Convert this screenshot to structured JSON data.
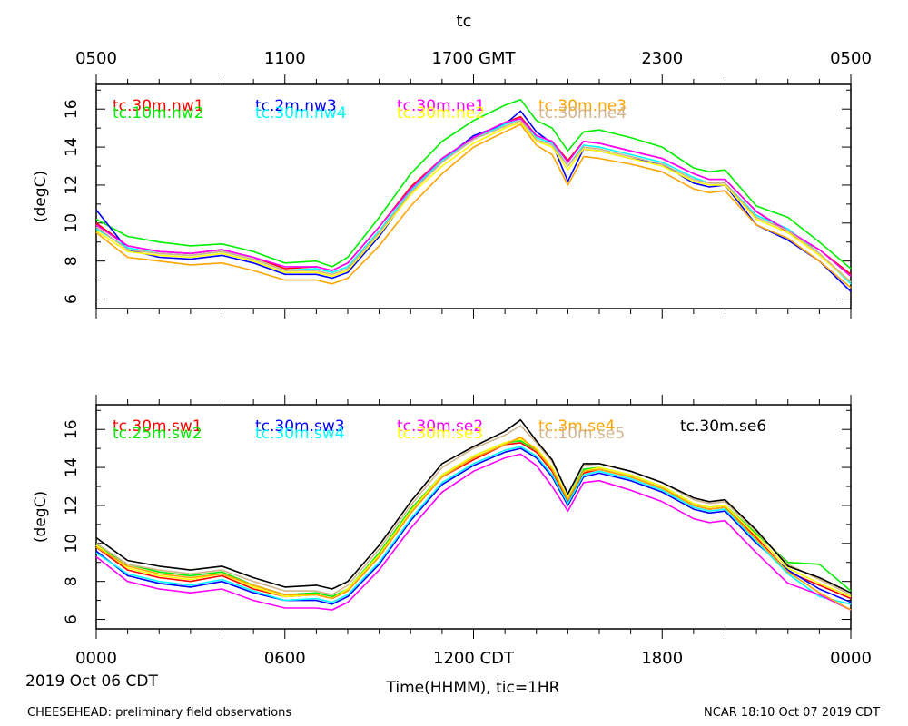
{
  "top_title": "tc",
  "top_ticks": [
    "0500",
    "1100",
    "1700 GMT",
    "2300",
    "0500"
  ],
  "bottom_ticks": [
    "0000",
    "0600",
    "1200 CDT",
    "1800",
    "0000"
  ],
  "date_label": "2019 Oct 06 CDT",
  "xlabel": "Time(HHMM), tic=1HR",
  "footer_left": "CHEESEHEAD: preliminary field observations",
  "footer_right": "NCAR 18:10 Oct 07 2019 CDT",
  "chart_data": [
    {
      "type": "line",
      "title": "tc (upper panel, north towers)",
      "ylabel": "(degC)",
      "ylim": [
        5.5,
        17.3
      ],
      "yticks": [
        6,
        8,
        10,
        12,
        14,
        16
      ],
      "xlim": [
        0,
        24
      ],
      "x": [
        0,
        1,
        2,
        3,
        4,
        5,
        6,
        7,
        7.5,
        8,
        9,
        10,
        11,
        12,
        13,
        13.5,
        14,
        14.5,
        15,
        15.5,
        16,
        17,
        18,
        19,
        19.5,
        20,
        21,
        22,
        23,
        24
      ],
      "series": [
        {
          "name": "tc.30m.nw1",
          "color": "#ff0000",
          "values": [
            10.0,
            8.8,
            8.5,
            8.4,
            8.6,
            8.2,
            7.6,
            7.7,
            7.5,
            7.9,
            9.8,
            11.9,
            13.4,
            14.5,
            15.3,
            15.6,
            14.6,
            14.3,
            13.3,
            14.3,
            14.2,
            13.8,
            13.4,
            12.6,
            12.3,
            12.3,
            10.6,
            9.5,
            8.6,
            7.3
          ]
        },
        {
          "name": "tc.10m.nw2",
          "color": "#00ee00",
          "values": [
            10.2,
            9.3,
            9.0,
            8.8,
            8.9,
            8.5,
            7.9,
            8.0,
            7.7,
            8.2,
            10.3,
            12.6,
            14.3,
            15.4,
            16.2,
            16.5,
            15.4,
            15.0,
            13.8,
            14.8,
            14.9,
            14.5,
            14.0,
            12.9,
            12.7,
            12.8,
            10.9,
            10.3,
            9.0,
            7.6
          ]
        },
        {
          "name": "tc.2m.nw3",
          "color": "#0000ff",
          "values": [
            10.7,
            8.6,
            8.2,
            8.1,
            8.3,
            7.9,
            7.3,
            7.3,
            7.1,
            7.4,
            9.3,
            11.6,
            13.3,
            14.6,
            15.2,
            15.9,
            14.8,
            14.2,
            12.2,
            13.9,
            13.8,
            13.4,
            13.1,
            12.1,
            11.9,
            12.0,
            9.9,
            9.1,
            8.0,
            6.4
          ]
        },
        {
          "name": "tc.30m.nw4",
          "color": "#00ffff",
          "values": [
            9.7,
            8.7,
            8.4,
            8.3,
            8.5,
            8.1,
            7.5,
            7.6,
            7.4,
            7.7,
            9.6,
            11.7,
            13.3,
            14.4,
            15.2,
            15.5,
            14.5,
            14.2,
            13.0,
            14.1,
            14.0,
            13.6,
            13.2,
            12.4,
            12.1,
            12.1,
            10.4,
            9.7,
            8.4,
            6.8
          ]
        },
        {
          "name": "tc.30m.ne1",
          "color": "#ff00ff",
          "values": [
            9.9,
            8.8,
            8.5,
            8.4,
            8.6,
            8.2,
            7.7,
            7.7,
            7.5,
            7.9,
            9.8,
            11.8,
            13.4,
            14.5,
            15.3,
            15.5,
            14.6,
            14.3,
            13.2,
            14.3,
            14.2,
            13.8,
            13.4,
            12.6,
            12.3,
            12.3,
            10.6,
            9.6,
            8.6,
            7.2
          ]
        },
        {
          "name": "tc.30m.ne2",
          "color": "#ffff00",
          "values": [
            9.6,
            8.5,
            8.3,
            8.2,
            8.4,
            8.0,
            7.4,
            7.4,
            7.2,
            7.5,
            9.4,
            11.5,
            13.0,
            14.2,
            15.0,
            15.3,
            14.3,
            14.0,
            12.8,
            13.9,
            13.8,
            13.4,
            13.0,
            12.2,
            12.0,
            12.0,
            10.2,
            9.5,
            8.3,
            6.9
          ]
        },
        {
          "name": "tc.30m.ne3",
          "color": "#ffa500",
          "values": [
            9.5,
            8.2,
            8.0,
            7.8,
            7.9,
            7.5,
            7.0,
            7.0,
            6.8,
            7.1,
            8.8,
            10.9,
            12.6,
            14.0,
            14.8,
            15.2,
            14.1,
            13.6,
            12.0,
            13.5,
            13.4,
            13.1,
            12.7,
            11.8,
            11.6,
            11.7,
            9.9,
            9.2,
            8.0,
            6.6
          ]
        },
        {
          "name": "tc.30m.ne4",
          "color": "#d2b48c",
          "values": [
            9.8,
            8.6,
            8.4,
            8.3,
            8.5,
            8.1,
            7.5,
            7.5,
            7.3,
            7.6,
            9.5,
            11.6,
            13.2,
            14.4,
            15.1,
            15.4,
            14.4,
            14.1,
            13.0,
            14.0,
            13.9,
            13.5,
            13.1,
            12.3,
            12.1,
            12.1,
            10.3,
            9.6,
            8.4,
            6.9
          ]
        }
      ]
    },
    {
      "type": "line",
      "title": "tc (lower panel, south towers)",
      "ylabel": "(degC)",
      "ylim": [
        5.5,
        17.3
      ],
      "yticks": [
        6,
        8,
        10,
        12,
        14,
        16
      ],
      "xlim": [
        0,
        24
      ],
      "x": [
        0,
        1,
        2,
        3,
        4,
        5,
        6,
        7,
        7.5,
        8,
        9,
        10,
        11,
        12,
        13,
        13.5,
        14,
        14.5,
        15,
        15.5,
        16,
        17,
        18,
        19,
        19.5,
        20,
        21,
        22,
        23,
        24
      ],
      "series": [
        {
          "name": "tc.30m.sw1",
          "color": "#ff0000",
          "values": [
            9.8,
            8.6,
            8.2,
            8.0,
            8.3,
            7.6,
            7.2,
            7.3,
            7.1,
            7.5,
            9.3,
            11.6,
            13.5,
            14.4,
            15.2,
            15.3,
            14.8,
            13.8,
            12.2,
            13.7,
            13.9,
            13.5,
            12.9,
            12.0,
            11.8,
            11.9,
            10.3,
            8.5,
            7.8,
            7.1
          ]
        },
        {
          "name": "tc.25m.sw2",
          "color": "#00ee00",
          "values": [
            9.9,
            8.9,
            8.5,
            8.3,
            8.5,
            7.8,
            7.3,
            7.4,
            7.2,
            7.6,
            9.5,
            11.8,
            13.6,
            14.6,
            15.3,
            15.4,
            14.9,
            14.0,
            12.4,
            13.9,
            14.0,
            13.6,
            13.0,
            12.1,
            11.9,
            12.0,
            10.5,
            9.0,
            8.9,
            7.5
          ]
        },
        {
          "name": "tc.30m.sw3",
          "color": "#0000ff",
          "values": [
            9.6,
            8.3,
            7.9,
            7.7,
            8.0,
            7.4,
            7.0,
            7.0,
            6.8,
            7.2,
            8.9,
            11.2,
            13.1,
            14.1,
            14.8,
            15.0,
            14.5,
            13.5,
            12.0,
            13.5,
            13.7,
            13.3,
            12.7,
            11.8,
            11.6,
            11.7,
            10.0,
            8.6,
            7.6,
            6.9
          ]
        },
        {
          "name": "tc.30m.sw4",
          "color": "#00ffff",
          "values": [
            9.5,
            8.4,
            8.0,
            7.8,
            8.1,
            7.5,
            7.0,
            7.1,
            6.9,
            7.3,
            9.0,
            11.3,
            13.2,
            14.2,
            14.9,
            15.1,
            14.6,
            13.6,
            12.1,
            13.6,
            13.8,
            13.4,
            12.8,
            11.9,
            11.7,
            11.8,
            10.1,
            8.4,
            7.2,
            6.8
          ]
        },
        {
          "name": "tc.30m.se2",
          "color": "#ff00ff",
          "values": [
            9.3,
            8.0,
            7.6,
            7.4,
            7.6,
            7.0,
            6.6,
            6.6,
            6.5,
            6.9,
            8.6,
            10.8,
            12.7,
            13.8,
            14.5,
            14.7,
            14.1,
            13.0,
            11.7,
            13.2,
            13.3,
            12.8,
            12.2,
            11.3,
            11.1,
            11.2,
            9.5,
            7.9,
            7.3,
            6.5
          ]
        },
        {
          "name": "tc.30m.se3",
          "color": "#ffff00",
          "values": [
            9.9,
            8.7,
            8.3,
            8.1,
            8.4,
            7.7,
            7.2,
            7.3,
            7.1,
            7.6,
            9.4,
            11.7,
            13.6,
            14.6,
            15.3,
            15.5,
            15.0,
            14.0,
            12.4,
            13.8,
            14.0,
            13.6,
            13.0,
            12.1,
            11.9,
            12.0,
            10.4,
            8.7,
            7.9,
            7.2
          ]
        },
        {
          "name": "tc.3m.se4",
          "color": "#ffa500",
          "values": [
            9.8,
            8.8,
            8.4,
            8.2,
            8.4,
            7.8,
            7.3,
            7.3,
            7.1,
            7.5,
            9.3,
            11.6,
            13.5,
            14.5,
            15.2,
            15.6,
            14.9,
            13.9,
            12.3,
            13.8,
            13.9,
            13.5,
            12.9,
            12.0,
            11.8,
            11.9,
            10.2,
            8.5,
            7.4,
            6.5
          ]
        },
        {
          "name": "tc.10m.se5",
          "color": "#d2b48c",
          "values": [
            10.0,
            8.9,
            8.6,
            8.4,
            8.6,
            8.0,
            7.5,
            7.5,
            7.3,
            7.8,
            9.7,
            12.0,
            14.0,
            15.0,
            15.7,
            16.2,
            15.3,
            14.3,
            12.6,
            14.1,
            14.2,
            13.8,
            13.2,
            12.3,
            12.1,
            12.2,
            10.6,
            8.9,
            8.1,
            7.3
          ]
        },
        {
          "name": "tc.30m.se6",
          "color": "#000000",
          "values": [
            10.3,
            9.1,
            8.8,
            8.6,
            8.8,
            8.2,
            7.7,
            7.8,
            7.6,
            8.0,
            9.9,
            12.2,
            14.2,
            15.1,
            15.9,
            16.5,
            15.4,
            14.4,
            12.6,
            14.2,
            14.2,
            13.8,
            13.2,
            12.4,
            12.2,
            12.3,
            10.7,
            8.8,
            8.2,
            7.4
          ]
        }
      ]
    }
  ]
}
